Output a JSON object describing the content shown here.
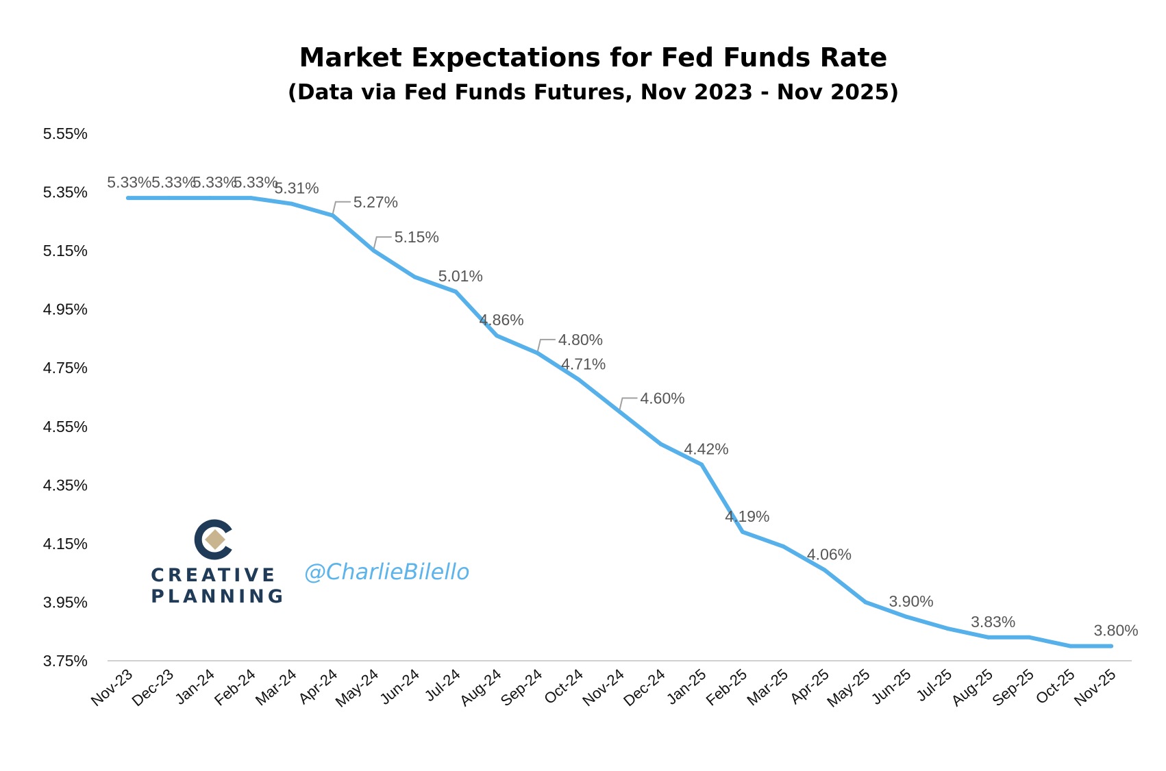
{
  "chart_data": {
    "type": "line",
    "title": "Market Expectations for Fed Funds Rate",
    "subtitle": "(Data via Fed Funds Futures, Nov 2023 - Nov 2025)",
    "xlabel": "",
    "ylabel": "",
    "ylim": [
      3.75,
      5.55
    ],
    "yticks": [
      "5.55%",
      "5.35%",
      "5.15%",
      "4.95%",
      "4.75%",
      "4.55%",
      "4.35%",
      "4.15%",
      "3.95%",
      "3.75%"
    ],
    "ytick_values": [
      5.55,
      5.35,
      5.15,
      4.95,
      4.75,
      4.55,
      4.35,
      4.15,
      3.95,
      3.75
    ],
    "grid": false,
    "line_color": "#56b0ea",
    "categories": [
      "Nov-23",
      "Dec-23",
      "Jan-24",
      "Feb-24",
      "Mar-24",
      "Apr-24",
      "May-24",
      "Jun-24",
      "Jul-24",
      "Aug-24",
      "Sep-24",
      "Oct-24",
      "Nov-24",
      "Dec-24",
      "Jan-25",
      "Feb-25",
      "Mar-25",
      "Apr-25",
      "May-25",
      "Jun-25",
      "Jul-25",
      "Aug-25",
      "Sep-25",
      "Oct-25",
      "Nov-25"
    ],
    "values": [
      5.33,
      5.33,
      5.33,
      5.33,
      5.31,
      5.27,
      5.15,
      5.06,
      5.01,
      4.86,
      4.8,
      4.71,
      4.6,
      4.49,
      4.42,
      4.19,
      4.14,
      4.06,
      3.95,
      3.9,
      3.86,
      3.83,
      3.83,
      3.8,
      3.8
    ],
    "data_labels": [
      {
        "index": 0,
        "text": "5.33%"
      },
      {
        "index": 1,
        "text": "5.33%"
      },
      {
        "index": 2,
        "text": "5.33%"
      },
      {
        "index": 3,
        "text": "5.33%"
      },
      {
        "index": 4,
        "text": "5.31%"
      },
      {
        "index": 5,
        "text": "5.27%"
      },
      {
        "index": 6,
        "text": "5.15%"
      },
      {
        "index": 8,
        "text": "5.01%"
      },
      {
        "index": 9,
        "text": "4.86%"
      },
      {
        "index": 10,
        "text": "4.80%"
      },
      {
        "index": 11,
        "text": "4.71%"
      },
      {
        "index": 12,
        "text": "4.60%"
      },
      {
        "index": 14,
        "text": "4.42%"
      },
      {
        "index": 15,
        "text": "4.19%"
      },
      {
        "index": 17,
        "text": "4.06%"
      },
      {
        "index": 19,
        "text": "3.90%"
      },
      {
        "index": 21,
        "text": "3.83%"
      },
      {
        "index": 24,
        "text": "3.80%"
      }
    ]
  },
  "branding": {
    "company_line1": "CREATIVE",
    "company_line2": "PLANNING",
    "handle": "@CharlieBilello",
    "logo_icon": "creative-planning-logo-icon",
    "logo_color": "#1f3b57",
    "logo_accent": "#c8b48e"
  }
}
